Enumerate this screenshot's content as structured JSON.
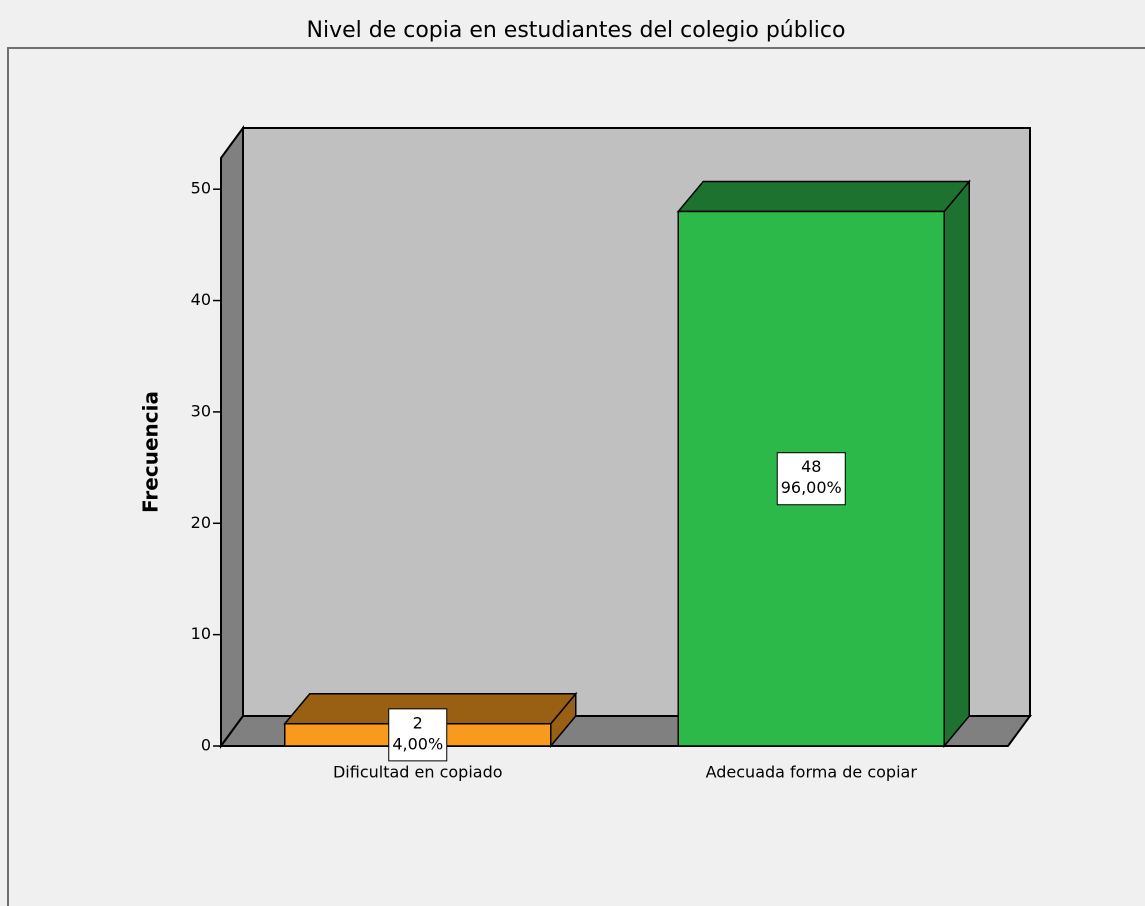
{
  "chart_data": {
    "type": "bar3d",
    "title": "Nivel de copia en estudiantes del colegio público",
    "ylabel": "Frecuencia",
    "categories": [
      "Dificultad en copiado",
      "Adecuada forma de copiar"
    ],
    "values": [
      2,
      48
    ],
    "percents": [
      4,
      96
    ],
    "percent_labels": [
      "4,00%",
      "96,00%"
    ],
    "colors": [
      "#f79a1e",
      "#2db84a"
    ],
    "ylim": [
      0,
      52.8
    ],
    "yticks": [
      0,
      10,
      20,
      30,
      40,
      50
    ]
  }
}
